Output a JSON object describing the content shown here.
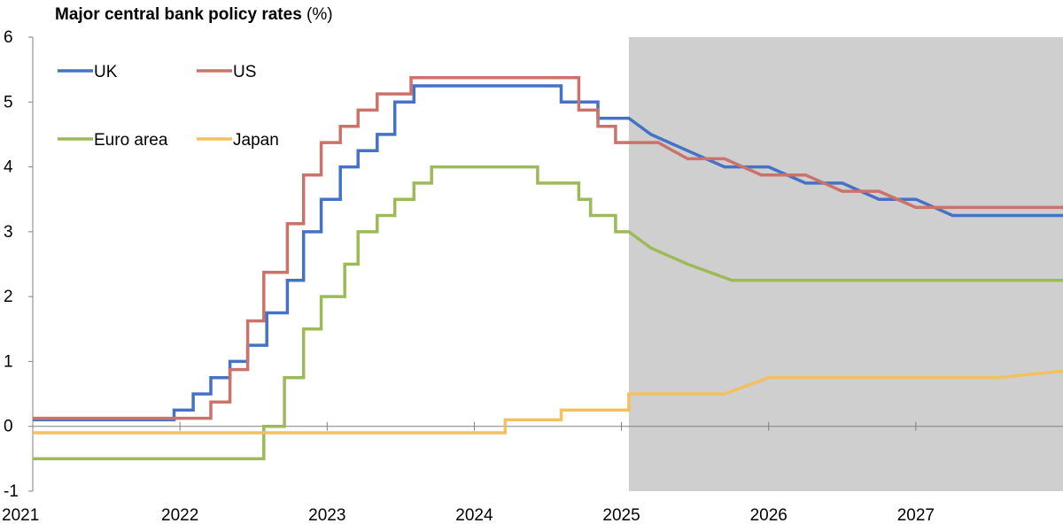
{
  "title": {
    "main": "Major central bank policy rates",
    "unit": "(%)"
  },
  "colors": {
    "UK": "#4472c4",
    "US": "#c9736a",
    "Euro area": "#9bbb59",
    "Japan": "#f2c060",
    "projection_shade": "#cfcfcf",
    "axis": "#808080"
  },
  "chart_data": {
    "type": "line",
    "title": "Major central bank policy rates (%)",
    "xlabel": "",
    "ylabel": "",
    "xlim": [
      2021.0,
      2028.0
    ],
    "ylim": [
      -1,
      6
    ],
    "x_ticks": [
      "2021",
      "2022",
      "2023",
      "2024",
      "2025",
      "2026",
      "2027"
    ],
    "y_ticks": [
      "-1",
      "0",
      "1",
      "2",
      "3",
      "4",
      "5",
      "6"
    ],
    "shaded_region": {
      "from": 2025.05,
      "to": 2028.0
    },
    "grid": false,
    "legend": {
      "placement": "top-left",
      "order": [
        "UK",
        "US",
        "Euro area",
        "Japan"
      ]
    },
    "series": [
      {
        "name": "UK",
        "step": true,
        "points": [
          [
            2021.0,
            0.1
          ],
          [
            2021.96,
            0.25
          ],
          [
            2022.09,
            0.5
          ],
          [
            2022.21,
            0.75
          ],
          [
            2022.34,
            1.0
          ],
          [
            2022.46,
            1.25
          ],
          [
            2022.59,
            1.75
          ],
          [
            2022.73,
            2.25
          ],
          [
            2022.84,
            3.0
          ],
          [
            2022.96,
            3.5
          ],
          [
            2023.09,
            4.0
          ],
          [
            2023.21,
            4.25
          ],
          [
            2023.34,
            4.5
          ],
          [
            2023.46,
            5.0
          ],
          [
            2023.59,
            5.25
          ],
          [
            2024.59,
            5.0
          ],
          [
            2024.84,
            4.75
          ],
          [
            2025.05,
            4.75
          ],
          [
            2025.2,
            4.5
          ],
          [
            2025.45,
            4.25
          ],
          [
            2025.7,
            4.0
          ],
          [
            2026.0,
            4.0
          ],
          [
            2026.25,
            3.75
          ],
          [
            2026.5,
            3.75
          ],
          [
            2026.75,
            3.5
          ],
          [
            2027.0,
            3.5
          ],
          [
            2027.25,
            3.25
          ],
          [
            2028.0,
            3.25
          ]
        ]
      },
      {
        "name": "US",
        "step": true,
        "points": [
          [
            2021.0,
            0.125
          ],
          [
            2022.21,
            0.375
          ],
          [
            2022.34,
            0.875
          ],
          [
            2022.46,
            1.625
          ],
          [
            2022.57,
            2.375
          ],
          [
            2022.73,
            3.125
          ],
          [
            2022.84,
            3.875
          ],
          [
            2022.96,
            4.375
          ],
          [
            2023.09,
            4.625
          ],
          [
            2023.21,
            4.875
          ],
          [
            2023.34,
            5.125
          ],
          [
            2023.57,
            5.375
          ],
          [
            2024.71,
            4.875
          ],
          [
            2024.84,
            4.625
          ],
          [
            2024.96,
            4.375
          ],
          [
            2025.05,
            4.375
          ],
          [
            2025.25,
            4.375
          ],
          [
            2025.45,
            4.125
          ],
          [
            2025.7,
            4.125
          ],
          [
            2025.95,
            3.875
          ],
          [
            2026.25,
            3.875
          ],
          [
            2026.5,
            3.625
          ],
          [
            2026.75,
            3.625
          ],
          [
            2027.0,
            3.375
          ],
          [
            2028.0,
            3.375
          ]
        ]
      },
      {
        "name": "Euro area",
        "step": true,
        "points": [
          [
            2021.0,
            -0.5
          ],
          [
            2022.57,
            0.0
          ],
          [
            2022.71,
            0.75
          ],
          [
            2022.84,
            1.5
          ],
          [
            2022.96,
            2.0
          ],
          [
            2023.12,
            2.5
          ],
          [
            2023.21,
            3.0
          ],
          [
            2023.34,
            3.25
          ],
          [
            2023.46,
            3.5
          ],
          [
            2023.59,
            3.75
          ],
          [
            2023.71,
            4.0
          ],
          [
            2024.43,
            3.75
          ],
          [
            2024.71,
            3.5
          ],
          [
            2024.79,
            3.25
          ],
          [
            2024.96,
            3.0
          ],
          [
            2025.05,
            3.0
          ],
          [
            2025.2,
            2.75
          ],
          [
            2025.45,
            2.5
          ],
          [
            2025.75,
            2.25
          ],
          [
            2028.0,
            2.25
          ]
        ]
      },
      {
        "name": "Japan",
        "step": true,
        "points": [
          [
            2021.0,
            -0.1
          ],
          [
            2024.21,
            0.1
          ],
          [
            2024.59,
            0.25
          ],
          [
            2025.05,
            0.5
          ],
          [
            2025.7,
            0.5
          ],
          [
            2026.0,
            0.75
          ],
          [
            2027.55,
            0.75
          ],
          [
            2028.0,
            0.85
          ]
        ]
      }
    ]
  }
}
